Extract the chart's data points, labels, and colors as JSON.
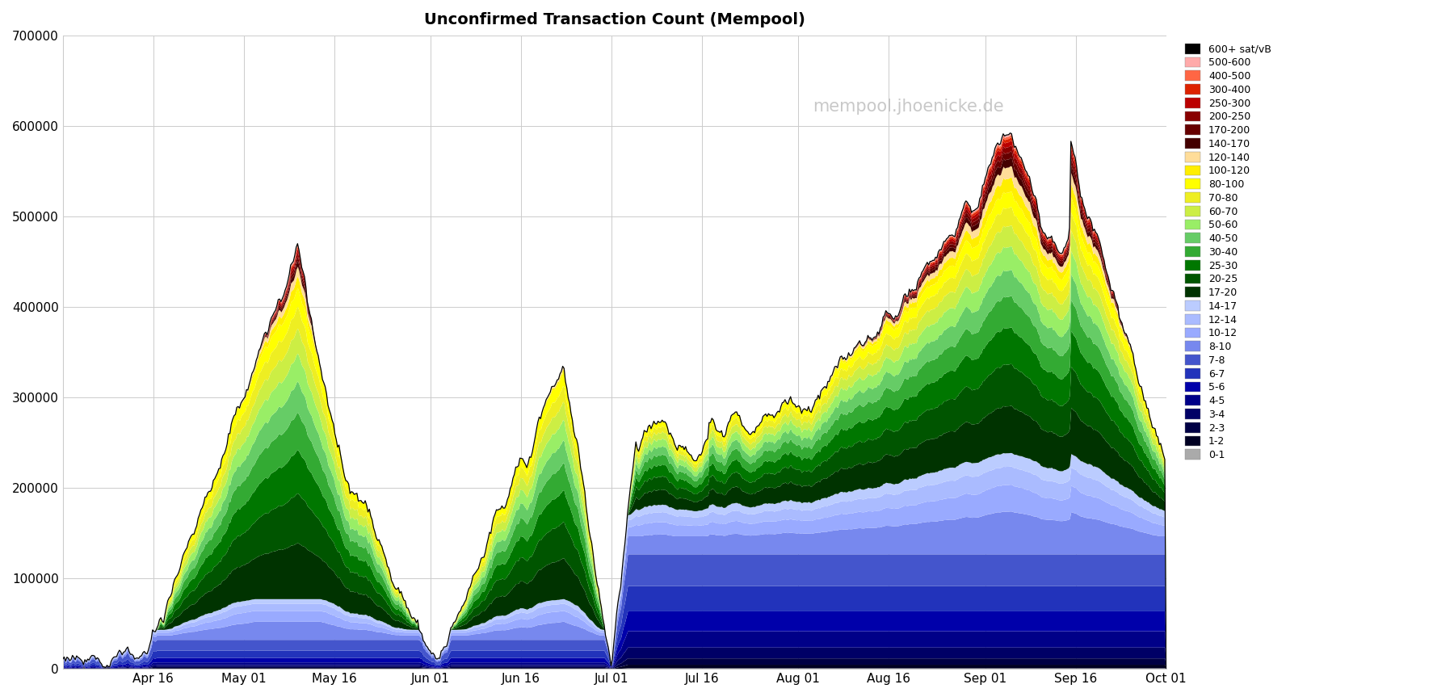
{
  "title": "Unconfirmed Transaction Count (Mempool)",
  "watermark": "mempool.jhoenicke.de",
  "ylim": [
    0,
    700000
  ],
  "yticks": [
    0,
    100000,
    200000,
    300000,
    400000,
    500000,
    600000,
    700000
  ],
  "ytick_labels": [
    "0",
    "100000",
    "200000",
    "300000",
    "400000",
    "500000",
    "600000",
    "700000"
  ],
  "background_color": "#ffffff",
  "grid_color": "#cccccc",
  "xtick_positions": [
    15,
    30,
    45,
    61,
    76,
    91,
    106,
    122,
    137,
    153,
    168,
    183
  ],
  "xtick_labels": [
    "Apr 16",
    "May 01",
    "May 16",
    "Jun 01",
    "Jun 16",
    "Jul 01",
    "Jul 16",
    "Aug 01",
    "Aug 16",
    "Sep 01",
    "Sep 16",
    "Oct 01"
  ],
  "stack_labels": [
    "0-1",
    "1-2",
    "2-3",
    "3-4",
    "4-5",
    "5-6",
    "6-7",
    "7-8",
    "8-10",
    "10-12",
    "12-14",
    "14-17",
    "17-20",
    "20-25",
    "25-30",
    "30-40",
    "40-50",
    "50-60",
    "60-70",
    "70-80",
    "80-100",
    "100-120",
    "120-140",
    "140-170",
    "170-200",
    "200-250",
    "250-300",
    "300-400",
    "400-500",
    "500-600",
    "600+"
  ],
  "stack_colors": [
    "#aaaaaa",
    "#000022",
    "#000044",
    "#000066",
    "#000088",
    "#0000aa",
    "#2233bb",
    "#4455cc",
    "#7788ee",
    "#99aaff",
    "#aabbff",
    "#bbccff",
    "#003300",
    "#005500",
    "#007700",
    "#33aa33",
    "#66cc66",
    "#99ee66",
    "#ccee44",
    "#eeee22",
    "#ffff00",
    "#ffee00",
    "#ffdd99",
    "#440000",
    "#660000",
    "#880000",
    "#bb0000",
    "#dd2200",
    "#ff6644",
    "#ffaaaa",
    "#000000"
  ],
  "legend_labels": [
    "600+ sat/vB",
    "500-600",
    "400-500",
    "300-400",
    "250-300",
    "200-250",
    "170-200",
    "140-170",
    "120-140",
    "100-120",
    "80-100",
    "70-80",
    "60-70",
    "50-60",
    "40-50",
    "30-40",
    "25-30",
    "20-25",
    "17-20",
    "14-17",
    "12-14",
    "10-12",
    "8-10",
    "7-8",
    "6-7",
    "5-6",
    "4-5",
    "3-4",
    "2-3",
    "1-2",
    "0-1"
  ],
  "legend_colors": [
    "#000000",
    "#ffaaaa",
    "#ff6644",
    "#dd2200",
    "#bb0000",
    "#880000",
    "#660000",
    "#440000",
    "#ffdd99",
    "#ffee00",
    "#ffff00",
    "#eeee22",
    "#ccee44",
    "#99ee66",
    "#66cc66",
    "#33aa33",
    "#007700",
    "#005500",
    "#003300",
    "#bbccff",
    "#aabbff",
    "#99aaff",
    "#7788ee",
    "#4455cc",
    "#2233bb",
    "#0000aa",
    "#000088",
    "#000066",
    "#000044",
    "#000022",
    "#aaaaaa"
  ]
}
